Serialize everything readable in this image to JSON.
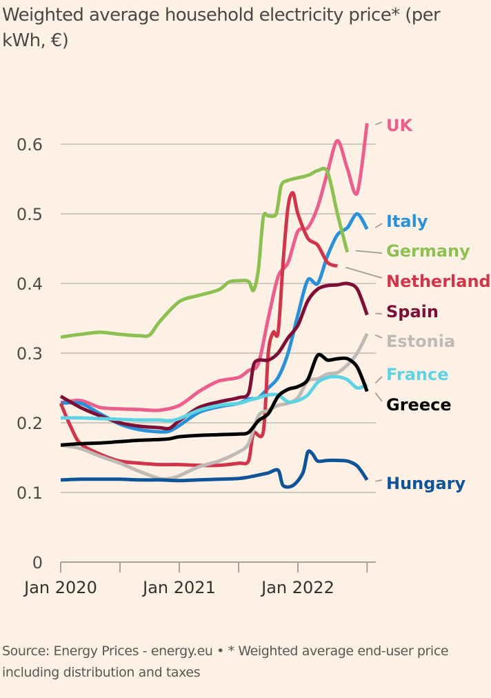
{
  "chart_data": {
    "type": "line",
    "title": "Weighted average household electricity price* (per kWh, €)",
    "xlabel": "",
    "ylabel": "",
    "ylim": [
      0,
      0.6
    ],
    "yticks": [
      "0",
      "0.1",
      "0.2",
      "0.3",
      "0.4",
      "0.5",
      "0.6"
    ],
    "ytick_values": [
      0,
      0.1,
      0.2,
      0.3,
      0.4,
      0.5,
      0.6
    ],
    "xticks": [
      {
        "month": 0,
        "label": "Jan 2020"
      },
      {
        "month": 6,
        "label": ""
      },
      {
        "month": 12,
        "label": "Jan 2021"
      },
      {
        "month": 18,
        "label": ""
      },
      {
        "month": 24,
        "label": "Jan 2022"
      },
      {
        "month": 31,
        "label": ""
      }
    ],
    "x_range_months": [
      0,
      31
    ],
    "grid": true,
    "legend": "direct labels at line ends (right)",
    "series": [
      {
        "name": "UK",
        "color": "#eb5e8d",
        "points": [
          [
            0,
            0.229
          ],
          [
            2,
            0.232
          ],
          [
            4,
            0.222
          ],
          [
            6,
            0.22
          ],
          [
            8,
            0.219
          ],
          [
            10,
            0.218
          ],
          [
            12,
            0.225
          ],
          [
            14,
            0.245
          ],
          [
            16,
            0.26
          ],
          [
            18,
            0.265
          ],
          [
            19,
            0.275
          ],
          [
            20,
            0.285
          ],
          [
            21,
            0.35
          ],
          [
            22,
            0.41
          ],
          [
            23,
            0.43
          ],
          [
            24,
            0.475
          ],
          [
            25,
            0.48
          ],
          [
            26,
            0.51
          ],
          [
            27,
            0.56
          ],
          [
            28,
            0.605
          ],
          [
            29,
            0.565
          ],
          [
            30,
            0.53
          ],
          [
            31,
            0.63
          ]
        ]
      },
      {
        "name": "Italy",
        "color": "#2a91d8",
        "points": [
          [
            0,
            0.228
          ],
          [
            2,
            0.228
          ],
          [
            4,
            0.213
          ],
          [
            6,
            0.198
          ],
          [
            8,
            0.19
          ],
          [
            10,
            0.187
          ],
          [
            11,
            0.188
          ],
          [
            12,
            0.196
          ],
          [
            14,
            0.215
          ],
          [
            16,
            0.223
          ],
          [
            18,
            0.228
          ],
          [
            19,
            0.234
          ],
          [
            20,
            0.236
          ],
          [
            21,
            0.25
          ],
          [
            22,
            0.265
          ],
          [
            23,
            0.3
          ],
          [
            24,
            0.355
          ],
          [
            25,
            0.405
          ],
          [
            26,
            0.4
          ],
          [
            27,
            0.44
          ],
          [
            28,
            0.47
          ],
          [
            29,
            0.48
          ],
          [
            30,
            0.5
          ],
          [
            31,
            0.478
          ]
        ]
      },
      {
        "name": "Germany",
        "color": "#8cc152",
        "points": [
          [
            0,
            0.323
          ],
          [
            2,
            0.327
          ],
          [
            4,
            0.33
          ],
          [
            6,
            0.327
          ],
          [
            8,
            0.325
          ],
          [
            9,
            0.326
          ],
          [
            10,
            0.345
          ],
          [
            12,
            0.374
          ],
          [
            14,
            0.383
          ],
          [
            16,
            0.391
          ],
          [
            17,
            0.402
          ],
          [
            18,
            0.404
          ],
          [
            19,
            0.403
          ],
          [
            19.5,
            0.39
          ],
          [
            20,
            0.42
          ],
          [
            20.5,
            0.495
          ],
          [
            21,
            0.497
          ],
          [
            21.8,
            0.5
          ],
          [
            22.3,
            0.54
          ],
          [
            23,
            0.548
          ],
          [
            25,
            0.555
          ],
          [
            26,
            0.562
          ],
          [
            27,
            0.56
          ],
          [
            28,
            0.5
          ],
          [
            29,
            0.445
          ]
        ]
      },
      {
        "name": "Netherlands",
        "color": "#d0354a",
        "points": [
          [
            0,
            0.228
          ],
          [
            1,
            0.195
          ],
          [
            2,
            0.17
          ],
          [
            4,
            0.155
          ],
          [
            6,
            0.145
          ],
          [
            8,
            0.142
          ],
          [
            10,
            0.14
          ],
          [
            12,
            0.14
          ],
          [
            14,
            0.139
          ],
          [
            16,
            0.139
          ],
          [
            18,
            0.142
          ],
          [
            19,
            0.145
          ],
          [
            19.5,
            0.185
          ],
          [
            20.5,
            0.187
          ],
          [
            21,
            0.3
          ],
          [
            21.5,
            0.33
          ],
          [
            22,
            0.33
          ],
          [
            22.5,
            0.43
          ],
          [
            23,
            0.51
          ],
          [
            23.5,
            0.53
          ],
          [
            24,
            0.5
          ],
          [
            25,
            0.465
          ],
          [
            26,
            0.455
          ],
          [
            27,
            0.43
          ],
          [
            28,
            0.425
          ]
        ]
      },
      {
        "name": "Spain",
        "color": "#7d0f37",
        "points": [
          [
            0,
            0.238
          ],
          [
            2,
            0.222
          ],
          [
            4,
            0.21
          ],
          [
            6,
            0.2
          ],
          [
            8,
            0.195
          ],
          [
            10,
            0.193
          ],
          [
            11,
            0.192
          ],
          [
            12,
            0.203
          ],
          [
            14,
            0.222
          ],
          [
            16,
            0.23
          ],
          [
            18,
            0.236
          ],
          [
            19,
            0.242
          ],
          [
            19.5,
            0.282
          ],
          [
            20,
            0.29
          ],
          [
            21,
            0.29
          ],
          [
            22,
            0.3
          ],
          [
            23,
            0.322
          ],
          [
            24,
            0.34
          ],
          [
            25,
            0.375
          ],
          [
            26,
            0.392
          ],
          [
            27,
            0.397
          ],
          [
            28,
            0.398
          ],
          [
            29,
            0.4
          ],
          [
            30,
            0.392
          ],
          [
            31,
            0.355
          ]
        ]
      },
      {
        "name": "Estonia",
        "color": "#c0b9b5",
        "points": [
          [
            0,
            0.168
          ],
          [
            2,
            0.163
          ],
          [
            4,
            0.152
          ],
          [
            6,
            0.142
          ],
          [
            8,
            0.13
          ],
          [
            10,
            0.12
          ],
          [
            11,
            0.12
          ],
          [
            12,
            0.124
          ],
          [
            14,
            0.137
          ],
          [
            16,
            0.145
          ],
          [
            18,
            0.158
          ],
          [
            19,
            0.17
          ],
          [
            20,
            0.21
          ],
          [
            21,
            0.218
          ],
          [
            22,
            0.225
          ],
          [
            23,
            0.228
          ],
          [
            24,
            0.236
          ],
          [
            25,
            0.26
          ],
          [
            26,
            0.263
          ],
          [
            27,
            0.27
          ],
          [
            28,
            0.272
          ],
          [
            29,
            0.283
          ],
          [
            30,
            0.3
          ],
          [
            31,
            0.328
          ]
        ]
      },
      {
        "name": "France",
        "color": "#5fd3e3",
        "points": [
          [
            0,
            0.207
          ],
          [
            2,
            0.207
          ],
          [
            4,
            0.206
          ],
          [
            6,
            0.205
          ],
          [
            8,
            0.204
          ],
          [
            10,
            0.204
          ],
          [
            11,
            0.203
          ],
          [
            12,
            0.206
          ],
          [
            14,
            0.218
          ],
          [
            16,
            0.225
          ],
          [
            18,
            0.228
          ],
          [
            19,
            0.232
          ],
          [
            20,
            0.236
          ],
          [
            21,
            0.24
          ],
          [
            22,
            0.24
          ],
          [
            23,
            0.23
          ],
          [
            24,
            0.232
          ],
          [
            25,
            0.24
          ],
          [
            26,
            0.258
          ],
          [
            27,
            0.265
          ],
          [
            28,
            0.266
          ],
          [
            29,
            0.262
          ],
          [
            30,
            0.25
          ],
          [
            31,
            0.255
          ]
        ]
      },
      {
        "name": "Greece",
        "color": "#000000",
        "points": [
          [
            0,
            0.168
          ],
          [
            2,
            0.17
          ],
          [
            4,
            0.171
          ],
          [
            6,
            0.173
          ],
          [
            8,
            0.175
          ],
          [
            10,
            0.176
          ],
          [
            11,
            0.177
          ],
          [
            12,
            0.18
          ],
          [
            14,
            0.182
          ],
          [
            16,
            0.183
          ],
          [
            18,
            0.184
          ],
          [
            19,
            0.186
          ],
          [
            20,
            0.203
          ],
          [
            21,
            0.213
          ],
          [
            22,
            0.238
          ],
          [
            23,
            0.248
          ],
          [
            24,
            0.252
          ],
          [
            25,
            0.262
          ],
          [
            26,
            0.297
          ],
          [
            27,
            0.29
          ],
          [
            28,
            0.292
          ],
          [
            29,
            0.292
          ],
          [
            30,
            0.28
          ],
          [
            31,
            0.245
          ]
        ]
      },
      {
        "name": "Hungary",
        "color": "#0f5499",
        "points": [
          [
            0,
            0.118
          ],
          [
            2,
            0.119
          ],
          [
            4,
            0.119
          ],
          [
            6,
            0.119
          ],
          [
            8,
            0.118
          ],
          [
            10,
            0.118
          ],
          [
            12,
            0.117
          ],
          [
            14,
            0.118
          ],
          [
            16,
            0.119
          ],
          [
            18,
            0.12
          ],
          [
            19,
            0.122
          ],
          [
            20,
            0.125
          ],
          [
            21,
            0.128
          ],
          [
            22,
            0.132
          ],
          [
            22.5,
            0.11
          ],
          [
            23.5,
            0.11
          ],
          [
            24.5,
            0.128
          ],
          [
            25,
            0.158
          ],
          [
            25.5,
            0.155
          ],
          [
            26,
            0.145
          ],
          [
            27,
            0.146
          ],
          [
            28,
            0.146
          ],
          [
            29,
            0.145
          ],
          [
            30,
            0.138
          ],
          [
            31,
            0.118
          ]
        ]
      }
    ],
    "labels": [
      {
        "series": "UK",
        "text": "UK",
        "color": "#eb5e8d"
      },
      {
        "series": "Italy",
        "text": "Italy",
        "color": "#2a91d8"
      },
      {
        "series": "Germany",
        "text": "Germany",
        "color": "#8cc152"
      },
      {
        "series": "Netherlands",
        "text": "Netherlands",
        "color": "#d0354a"
      },
      {
        "series": "Spain",
        "text": "Spain",
        "color": "#7d0f37"
      },
      {
        "series": "Estonia",
        "text": "Estonia",
        "color": "#c0b9b5"
      },
      {
        "series": "France",
        "text": "France",
        "color": "#5fd3e3"
      },
      {
        "series": "Greece",
        "text": "Greece",
        "color": "#000000"
      },
      {
        "series": "Hungary",
        "text": "Hungary",
        "color": "#0f5499"
      }
    ]
  },
  "footer": {
    "source": "Source: Energy Prices - energy.eu • * Weighted average end-user price including distribution and taxes"
  },
  "colors": {
    "background": "#fdf1e6",
    "grid": "#cfc6bd",
    "axis": "#aaa39d"
  }
}
